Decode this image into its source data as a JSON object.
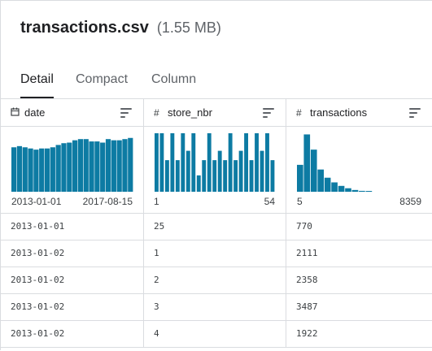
{
  "file": {
    "name": "transactions.csv",
    "size": "(1.55 MB)"
  },
  "tabs": [
    {
      "label": "Detail",
      "active": true
    },
    {
      "label": "Compact",
      "active": false
    },
    {
      "label": "Column",
      "active": false
    }
  ],
  "columns": [
    {
      "name": "date",
      "type_icon": "calendar-icon",
      "type_glyph": "▭",
      "range_min": "2013-01-01",
      "range_max": "2017-08-15",
      "histogram": [
        0.76,
        0.78,
        0.76,
        0.74,
        0.72,
        0.74,
        0.74,
        0.76,
        0.8,
        0.83,
        0.84,
        0.88,
        0.9,
        0.9,
        0.86,
        0.86,
        0.84,
        0.9,
        0.88,
        0.88,
        0.9,
        0.92
      ]
    },
    {
      "name": "store_nbr",
      "type_icon": "hash-icon",
      "type_glyph": "#",
      "range_min": "1",
      "range_max": "54",
      "histogram": [
        1.0,
        1.0,
        0.54,
        1.0,
        0.54,
        1.0,
        0.7,
        1.0,
        0.28,
        0.54,
        1.0,
        0.54,
        0.7,
        0.54,
        1.0,
        0.54,
        0.7,
        1.0,
        0.54,
        1.0,
        0.7,
        1.0,
        0.54
      ]
    },
    {
      "name": "transactions",
      "type_icon": "hash-icon",
      "type_glyph": "#",
      "range_min": "5",
      "range_max": "8359",
      "histogram": [
        0.46,
        0.98,
        0.72,
        0.38,
        0.24,
        0.16,
        0.1,
        0.06,
        0.03,
        0.015,
        0.008
      ]
    }
  ],
  "rows": [
    [
      "2013-01-01",
      "25",
      "770"
    ],
    [
      "2013-01-02",
      "1",
      "2111"
    ],
    [
      "2013-01-02",
      "2",
      "2358"
    ],
    [
      "2013-01-02",
      "3",
      "3487"
    ],
    [
      "2013-01-02",
      "4",
      "1922"
    ]
  ],
  "colors": {
    "bar": "#0d7ba3",
    "border": "#dadce0"
  }
}
